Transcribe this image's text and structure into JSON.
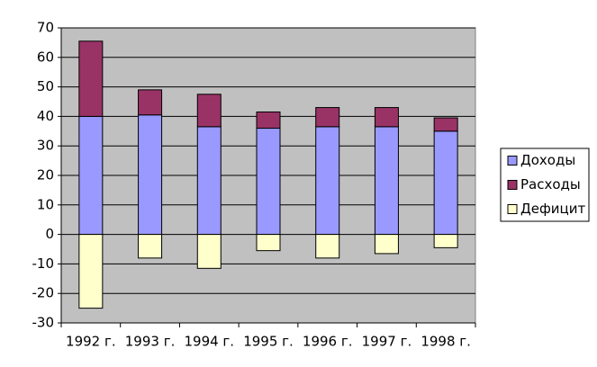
{
  "chart_data": {
    "type": "stacked_bar",
    "categories": [
      "1992 г.",
      "1993 г.",
      "1994 г.",
      "1995 г.",
      "1996 г.",
      "1997 г.",
      "1998 г."
    ],
    "series": [
      {
        "name": "Доходы",
        "color": "#9999ff",
        "values": [
          40,
          40.5,
          36.5,
          36,
          36.5,
          36.5,
          35
        ]
      },
      {
        "name": "Расходы",
        "color": "#993366",
        "values": [
          25.5,
          8.5,
          11,
          5.5,
          6.5,
          6.5,
          4.5
        ]
      },
      {
        "name": "Дефицит",
        "color": "#ffffcc",
        "values": [
          -25,
          -8,
          -11.5,
          -5.5,
          -8,
          -6.5,
          -4.5
        ]
      }
    ],
    "ylim": [
      -30,
      70
    ],
    "yticks": [
      -30,
      -20,
      -10,
      0,
      10,
      20,
      30,
      40,
      50,
      60,
      70
    ],
    "grid": true,
    "legend": "right"
  }
}
